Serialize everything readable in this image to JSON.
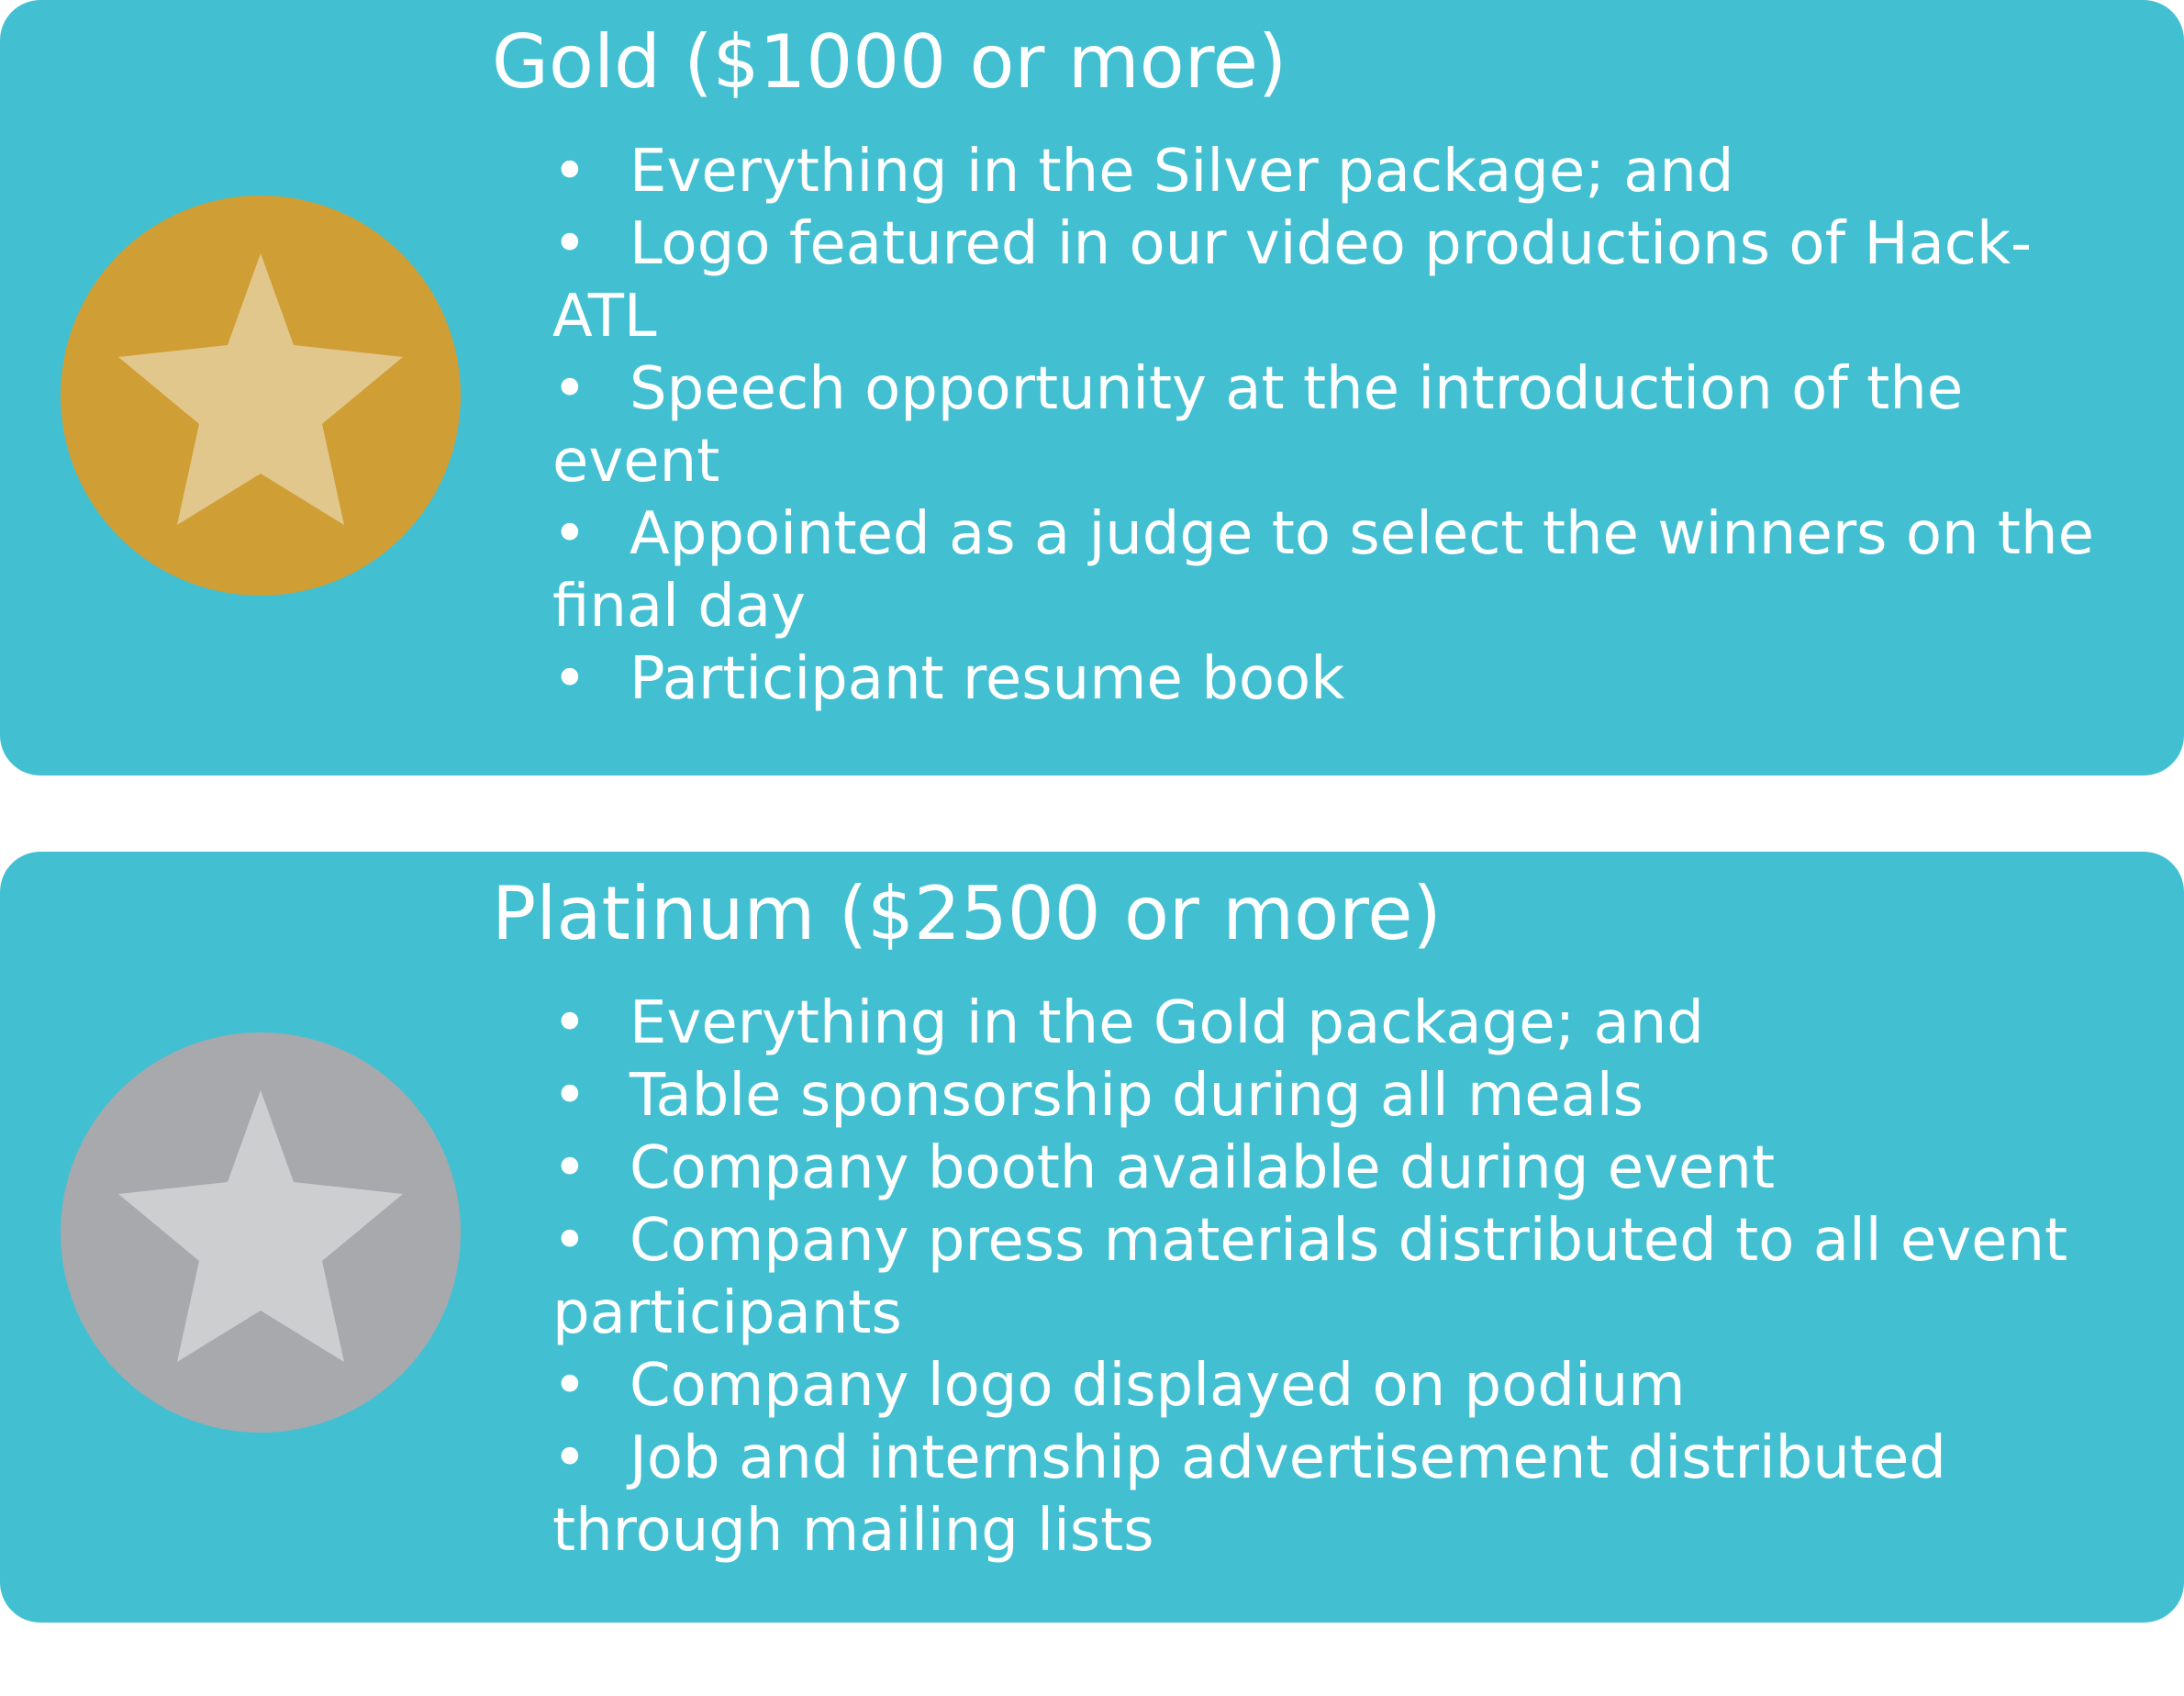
{
  "colors": {
    "card_background": "#42c0d2",
    "text": "#ffffff",
    "gold_medal": "#cf9e34",
    "gold_star": "#e2c78d",
    "platinum_medal": "#a7a9ac",
    "platinum_star": "#ccced0"
  },
  "tiers": [
    {
      "title": "Gold ($1000 or more)",
      "icon": "star-icon",
      "benefits": [
        "Everything in the Silver package; and",
        "Logo featured in our video productions of Hack-ATL",
        "Speech opportunity at the introduction of the event",
        "Appointed as a judge to select the winners on the final day",
        "Participant resume book"
      ]
    },
    {
      "title": "Platinum ($2500 or more)",
      "icon": "star-icon",
      "benefits": [
        "Everything in the Gold package; and",
        "Table sponsorship during all meals",
        "Company booth available during event",
        "Company press materials distributed to all event participants",
        "Company logo displayed on podium",
        "Job and internship advertisement distributed through mailing lists"
      ]
    }
  ]
}
